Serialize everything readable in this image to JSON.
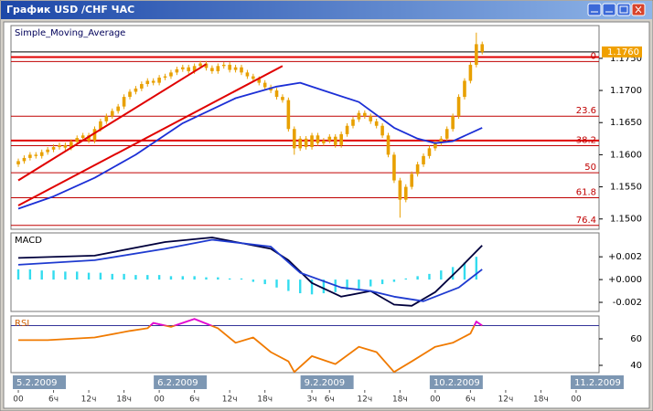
{
  "window": {
    "title": "График USD /CHF  ЧАС"
  },
  "chart_data": [
    {
      "type": "candlestick",
      "label": "Simple_Moving_Average",
      "label_color": "#00005a",
      "xlim": [
        -1.25,
        98.9
      ],
      "ylim": [
        1.1484,
        1.1801
      ],
      "yticks": [
        {
          "value": 1.175,
          "label": "1.1750"
        },
        {
          "value": 1.17,
          "label": "1.1700"
        },
        {
          "value": 1.165,
          "label": "1.1650"
        },
        {
          "value": 1.16,
          "label": "1.1600"
        },
        {
          "value": 1.155,
          "label": "1.1550"
        },
        {
          "value": 1.15,
          "label": "1.1500"
        }
      ],
      "candle_color": "#e8a000",
      "open": [
        1.1585,
        1.159,
        1.1595,
        1.16,
        1.1598,
        1.1604,
        1.1608,
        1.1612,
        1.1615,
        1.1611,
        1.162,
        1.1626,
        1.163,
        1.1622,
        1.164,
        1.1652,
        1.166,
        1.1668,
        1.1675,
        1.169,
        1.1698,
        1.1703,
        1.171,
        1.1715,
        1.1712,
        1.172,
        1.1722,
        1.1728,
        1.1733,
        1.1736,
        1.173,
        1.1738,
        1.1742,
        1.1735,
        1.173,
        1.1738,
        1.174,
        1.1732,
        1.1736,
        1.1728,
        1.1722,
        1.1718,
        1.1712,
        1.1705,
        1.17,
        1.169,
        1.1685,
        1.164,
        1.161,
        1.1625,
        1.1612,
        1.163,
        1.1618,
        1.1622,
        1.1628,
        1.1615,
        1.1632,
        1.1645,
        1.1655,
        1.1665,
        1.166,
        1.1652,
        1.1645,
        1.163,
        1.16,
        1.156,
        1.153,
        1.155,
        1.157,
        1.1585,
        1.1598,
        1.161,
        1.1618,
        1.1625,
        1.164,
        1.166,
        1.169,
        1.1715,
        1.174,
        1.1772
      ],
      "high": [
        1.1594,
        1.1599,
        1.1604,
        1.1604,
        1.1608,
        1.1612,
        1.1616,
        1.1619,
        1.1619,
        1.1624,
        1.163,
        1.1634,
        1.1634,
        1.1644,
        1.1656,
        1.1664,
        1.1672,
        1.1679,
        1.1694,
        1.1702,
        1.1707,
        1.1714,
        1.1719,
        1.1719,
        1.1724,
        1.1726,
        1.1732,
        1.1737,
        1.174,
        1.174,
        1.1742,
        1.1746,
        1.1746,
        1.1739,
        1.1742,
        1.1744,
        1.1744,
        1.174,
        1.174,
        1.1732,
        1.1726,
        1.1722,
        1.1716,
        1.1709,
        1.1704,
        1.1694,
        1.1689,
        1.1644,
        1.1629,
        1.1629,
        1.1634,
        1.1634,
        1.1626,
        1.1632,
        1.1632,
        1.1636,
        1.1649,
        1.1659,
        1.1669,
        1.1669,
        1.1664,
        1.1656,
        1.1649,
        1.1634,
        1.1604,
        1.1564,
        1.1554,
        1.1574,
        1.1589,
        1.1602,
        1.1614,
        1.1622,
        1.1629,
        1.1644,
        1.1664,
        1.1694,
        1.1719,
        1.1744,
        1.179,
        1.1776
      ],
      "low": [
        1.1581,
        1.1586,
        1.1591,
        1.1594,
        1.1594,
        1.16,
        1.1604,
        1.1608,
        1.1607,
        1.1607,
        1.1616,
        1.1622,
        1.1618,
        1.1618,
        1.1636,
        1.1648,
        1.1656,
        1.1664,
        1.1671,
        1.1686,
        1.1694,
        1.1699,
        1.1706,
        1.1708,
        1.1708,
        1.1716,
        1.1718,
        1.1724,
        1.1729,
        1.1726,
        1.1726,
        1.1734,
        1.1731,
        1.1726,
        1.1726,
        1.1734,
        1.1728,
        1.1728,
        1.1724,
        1.1718,
        1.1714,
        1.1708,
        1.1701,
        1.1696,
        1.1686,
        1.1681,
        1.1636,
        1.16,
        1.1606,
        1.1608,
        1.1608,
        1.1614,
        1.1614,
        1.1618,
        1.1611,
        1.1611,
        1.1628,
        1.1641,
        1.1651,
        1.1656,
        1.1648,
        1.1641,
        1.1626,
        1.1596,
        1.1556,
        1.1502,
        1.1526,
        1.1546,
        1.1566,
        1.1581,
        1.1594,
        1.1606,
        1.1614,
        1.1621,
        1.1636,
        1.1656,
        1.1686,
        1.1711,
        1.1736,
        1.1756
      ],
      "close": [
        1.159,
        1.1595,
        1.16,
        1.1598,
        1.1604,
        1.1608,
        1.1612,
        1.1615,
        1.1611,
        1.162,
        1.1626,
        1.163,
        1.1622,
        1.164,
        1.1652,
        1.166,
        1.1668,
        1.1675,
        1.169,
        1.1698,
        1.1703,
        1.171,
        1.1715,
        1.1712,
        1.172,
        1.1722,
        1.1728,
        1.1733,
        1.1736,
        1.173,
        1.1738,
        1.1742,
        1.1735,
        1.173,
        1.1738,
        1.174,
        1.1732,
        1.1736,
        1.1728,
        1.1722,
        1.1718,
        1.1712,
        1.1705,
        1.17,
        1.169,
        1.1685,
        1.164,
        1.161,
        1.1625,
        1.1612,
        1.163,
        1.1618,
        1.1622,
        1.1628,
        1.1615,
        1.1632,
        1.1645,
        1.1655,
        1.1665,
        1.166,
        1.1652,
        1.1645,
        1.163,
        1.16,
        1.156,
        1.153,
        1.155,
        1.157,
        1.1585,
        1.1598,
        1.161,
        1.1618,
        1.1625,
        1.164,
        1.166,
        1.169,
        1.1715,
        1.174,
        1.1772,
        1.176
      ],
      "series": [
        {
          "color": "#1c2fd6",
          "x": [
            0,
            6,
            13,
            20,
            28,
            37,
            44,
            48,
            52,
            58,
            64,
            68,
            71,
            74,
            79
          ],
          "values": [
            1.1516,
            1.1535,
            1.1564,
            1.16,
            1.1649,
            1.1688,
            1.1706,
            1.1712,
            1.17,
            1.1682,
            1.1642,
            1.1625,
            1.1618,
            1.1621,
            1.1642
          ]
        }
      ],
      "trendlines": [
        {
          "color": "#e00000",
          "x": [
            0,
            32
          ],
          "values": [
            1.156,
            1.1741
          ]
        },
        {
          "color": "#e00000",
          "x": [
            0,
            45
          ],
          "values": [
            1.1521,
            1.1738
          ]
        }
      ],
      "hlines": [
        1.1752,
        1.1622
      ],
      "hline_color": "#e00000",
      "fib_color": "#c00000",
      "fib_levels": [
        {
          "level": 0,
          "price": 1.1745
        },
        {
          "level": 23.6,
          "price": 1.166
        },
        {
          "level": 38.2,
          "price": 1.1614
        },
        {
          "level": 50,
          "price": 1.1572
        },
        {
          "level": 61.8,
          "price": 1.1533
        },
        {
          "level": 76.4,
          "price": 1.149
        }
      ],
      "last_price": {
        "value": 1.176,
        "label": "1.1760"
      },
      "last_price_color": "#f0a000"
    },
    {
      "type": "macd",
      "label": "MACD",
      "label_color": "#000000",
      "xlim": [
        -1.25,
        98.9
      ],
      "ylim": [
        -0.0028,
        0.0041
      ],
      "yticks": [
        {
          "value": 0.002,
          "label": "+0.002"
        },
        {
          "value": 0,
          "label": "+0.000"
        },
        -0.002
      ],
      "series": [
        {
          "style": "histogram",
          "color": "#33dcef",
          "x": [
            0,
            2,
            4,
            6,
            8,
            10,
            12,
            14,
            16,
            18,
            20,
            22,
            24,
            26,
            28,
            30,
            32,
            34,
            36,
            38,
            40,
            42,
            44,
            46,
            48,
            50,
            52,
            54,
            56,
            58,
            60,
            62,
            64,
            66,
            68,
            70,
            72,
            74,
            76,
            78
          ],
          "values": [
            0.0009,
            0.0009,
            0.0008,
            0.0008,
            0.0007,
            0.0007,
            0.0006,
            0.0006,
            0.0005,
            0.0005,
            0.0004,
            0.0004,
            0.0004,
            0.0003,
            0.0003,
            0.0003,
            0.0002,
            0.0002,
            0.0001,
            0.0001,
            -0.0002,
            -0.0004,
            -0.0007,
            -0.001,
            -0.0012,
            -0.0013,
            -0.0012,
            -0.0011,
            -0.0009,
            -0.0008,
            -0.0006,
            -0.0004,
            -0.0002,
            0.0001,
            0.0003,
            0.0005,
            0.0008,
            0.0011,
            0.0015,
            0.002
          ]
        },
        {
          "style": "line",
          "color": "#00003c",
          "x": [
            0,
            13,
            25,
            33,
            43,
            46,
            50,
            55,
            60,
            64,
            67,
            71,
            75,
            79
          ],
          "values": [
            0.0019,
            0.0021,
            0.0033,
            0.0037,
            0.0027,
            0.0017,
            -0.0003,
            -0.0015,
            -0.001,
            -0.0022,
            -0.0023,
            -0.0011,
            0.0009,
            0.003
          ]
        },
        {
          "style": "line",
          "color": "#1f3bd0",
          "x": [
            0,
            13,
            25,
            33,
            43,
            48,
            55,
            60,
            64,
            69,
            75,
            79
          ],
          "values": [
            0.0013,
            0.0017,
            0.0027,
            0.0035,
            0.0029,
            0.0006,
            -0.0007,
            -0.001,
            -0.0015,
            -0.0019,
            -0.0007,
            0.0009
          ]
        }
      ]
    },
    {
      "type": "line",
      "label": "RSI",
      "label_color": "#d06000",
      "xlim": [
        -1.25,
        98.9
      ],
      "ylim": [
        34.5,
        77.2
      ],
      "yticks": [
        60,
        40
      ],
      "levels": [
        70
      ],
      "level_color": "#333399",
      "series": [
        {
          "style": "line",
          "color": "#f07a00",
          "overbought_color": "#e000e0",
          "x": [
            0,
            5,
            13,
            19,
            22,
            23,
            26,
            30,
            34,
            37,
            40,
            43,
            46,
            47,
            50,
            54,
            58,
            61,
            64,
            67,
            71,
            74,
            77,
            78,
            79
          ],
          "values": [
            59,
            59,
            61,
            66,
            68,
            72,
            69,
            75,
            68,
            57,
            61,
            50,
            43,
            35,
            47,
            41,
            54,
            50,
            35,
            43,
            54,
            57,
            64,
            73,
            70
          ]
        }
      ],
      "xticks": [
        {
          "value": 0,
          "label": "00"
        },
        {
          "value": 6,
          "label": "6ч"
        },
        {
          "value": 12,
          "label": "12ч"
        },
        {
          "value": 18,
          "label": "18ч"
        },
        {
          "value": 24,
          "label": "00"
        },
        {
          "value": 30,
          "label": "6ч"
        },
        {
          "value": 36,
          "label": "12ч"
        },
        {
          "value": 42,
          "label": "18ч"
        },
        {
          "value": 50,
          "label": "3ч"
        },
        {
          "value": 53,
          "label": "6ч"
        },
        {
          "value": 59,
          "label": "12ч"
        },
        {
          "value": 65,
          "label": "18ч"
        },
        {
          "value": 71,
          "label": "00"
        },
        {
          "value": 77,
          "label": "6ч"
        },
        {
          "value": 83,
          "label": "12ч"
        },
        {
          "value": 89,
          "label": "18ч"
        },
        {
          "value": 95,
          "label": "00"
        }
      ],
      "date_ticks": [
        {
          "value": 0,
          "label": "5.2.2009"
        },
        {
          "value": 24,
          "label": "6.2.2009"
        },
        {
          "value": 49,
          "label": "9.2.2009"
        },
        {
          "value": 71,
          "label": "10.2.2009"
        },
        {
          "value": 95,
          "label": "11.2.2009"
        }
      ]
    }
  ]
}
